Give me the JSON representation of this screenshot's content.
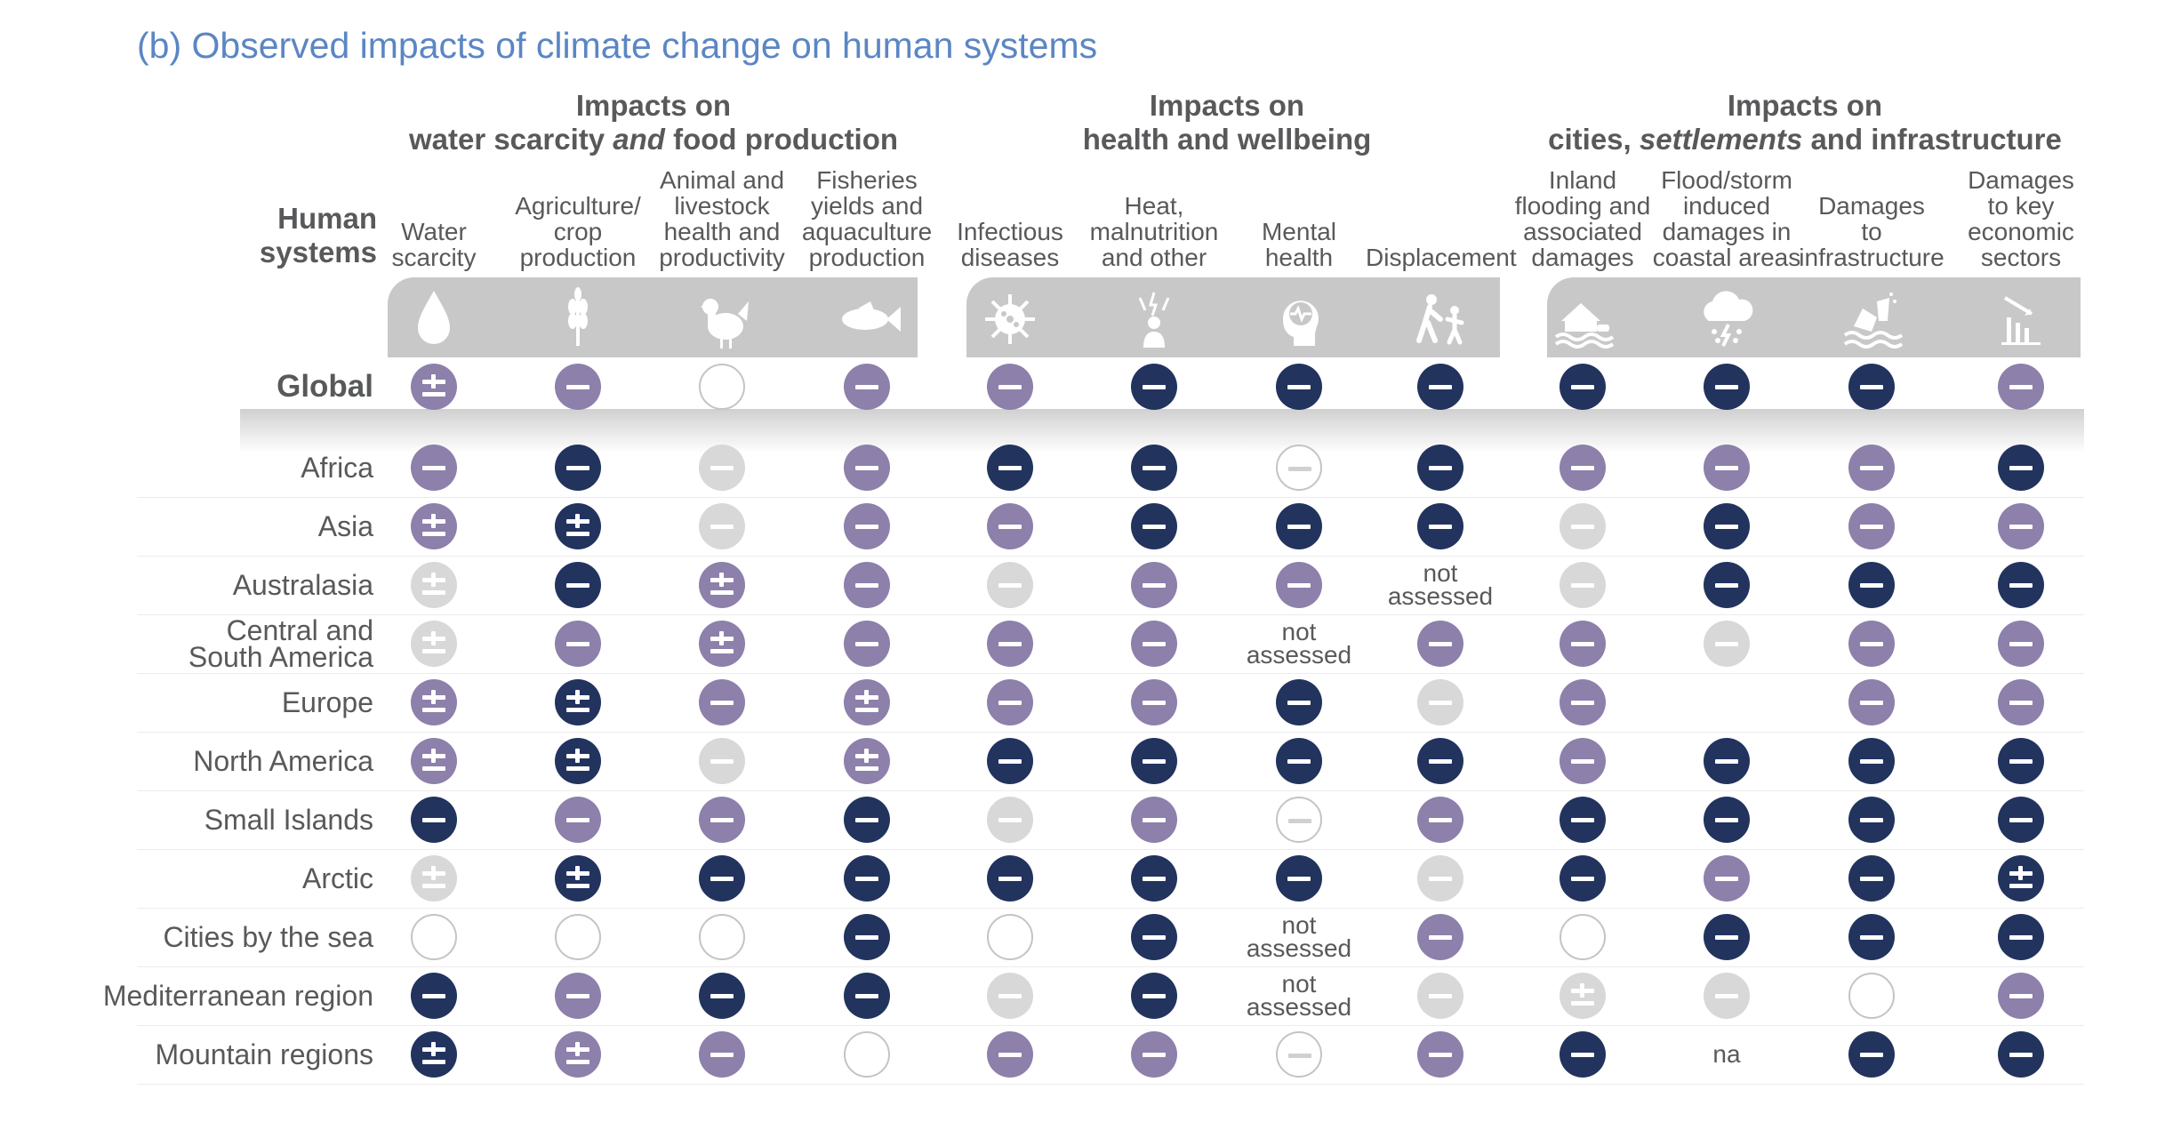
{
  "title": "(b) Observed impacts of climate change on human systems",
  "row_header": [
    "Human",
    "systems"
  ],
  "groups": [
    {
      "line1": "Impacts on",
      "line2_parts": [
        {
          "t": "water scarcity ",
          "i": false
        },
        {
          "t": "and",
          "i": true
        },
        {
          "t": " food production",
          "i": false
        }
      ]
    },
    {
      "line1": "Impacts on",
      "line2_parts": [
        {
          "t": "health and wellbeing",
          "i": false
        }
      ]
    },
    {
      "line1": "Impacts on",
      "line2_parts": [
        {
          "t": "cities, ",
          "i": false
        },
        {
          "t": "settlements",
          "i": true
        },
        {
          "t": " and infrastructure",
          "i": false
        }
      ]
    }
  ],
  "columns": [
    {
      "label": [
        "Water",
        "scarcity"
      ],
      "icon": "water-drop-icon"
    },
    {
      "label": [
        "Agriculture/",
        "crop",
        "production"
      ],
      "icon": "wheat-icon"
    },
    {
      "label": [
        "Animal and",
        "livestock",
        "health and",
        "productivity"
      ],
      "icon": "chicken-icon"
    },
    {
      "label": [
        "Fisheries",
        "yields and",
        "aquaculture",
        "production"
      ],
      "icon": "fish-icon"
    },
    {
      "label": [
        "Infectious",
        "diseases"
      ],
      "icon": "virus-icon"
    },
    {
      "label": [
        "Heat,",
        "malnutrition",
        "and other"
      ],
      "icon": "heat-person-icon"
    },
    {
      "label": [
        "Mental",
        "health"
      ],
      "icon": "head-heartbeat-icon"
    },
    {
      "label": [
        "Displacement"
      ],
      "icon": "displaced-people-icon"
    },
    {
      "label": [
        "Inland",
        "flooding and",
        "associated",
        "damages"
      ],
      "icon": "flooded-house-icon"
    },
    {
      "label": [
        "Flood/storm",
        "induced",
        "damages in",
        "coastal areas"
      ],
      "icon": "storm-cloud-icon"
    },
    {
      "label": [
        "Damages",
        "to",
        "infrastructure"
      ],
      "icon": "damaged-building-icon"
    },
    {
      "label": [
        "Damages",
        "to key",
        "economic",
        "sectors"
      ],
      "icon": "declining-chart-icon"
    }
  ],
  "rows": [
    {
      "label": [
        "Global"
      ],
      "global": true,
      "cells": [
        "pm-mid",
        "neg-mid",
        "none",
        "neg-mid",
        "neg-mid",
        "neg-dark",
        "neg-dark",
        "neg-dark",
        "neg-dark",
        "neg-dark",
        "neg-dark",
        "neg-mid"
      ]
    },
    {
      "label": [
        "Africa"
      ],
      "cells": [
        "neg-mid",
        "neg-dark",
        "neg-light",
        "neg-mid",
        "neg-dark",
        "neg-dark",
        "neg-outline",
        "neg-dark",
        "neg-mid",
        "neg-mid",
        "neg-mid",
        "neg-dark"
      ]
    },
    {
      "label": [
        "Asia"
      ],
      "cells": [
        "pm-mid",
        "pm-dark",
        "neg-light",
        "neg-mid",
        "neg-mid",
        "neg-dark",
        "neg-dark",
        "neg-dark",
        "neg-light",
        "neg-dark",
        "neg-mid",
        "neg-mid"
      ]
    },
    {
      "label": [
        "Australasia"
      ],
      "cells": [
        "pm-light",
        "neg-dark",
        "pm-mid",
        "neg-mid",
        "neg-light",
        "neg-mid",
        "neg-mid",
        "not assessed",
        "neg-light",
        "neg-dark",
        "neg-dark",
        "neg-dark"
      ]
    },
    {
      "label": [
        "Central and",
        "South America"
      ],
      "cells": [
        "pm-light",
        "neg-mid",
        "pm-mid",
        "neg-mid",
        "neg-mid",
        "neg-mid",
        "not assessed",
        "neg-mid",
        "neg-mid",
        "neg-light",
        "neg-mid",
        "neg-mid"
      ]
    },
    {
      "label": [
        "Europe"
      ],
      "cells": [
        "pm-mid",
        "pm-dark",
        "neg-mid",
        "pm-mid",
        "neg-mid",
        "neg-mid",
        "neg-dark",
        "neg-light",
        "neg-mid",
        "na-blank",
        "neg-mid",
        "neg-mid"
      ]
    },
    {
      "label": [
        "North America"
      ],
      "cells": [
        "pm-mid",
        "pm-dark",
        "neg-light",
        "pm-mid",
        "neg-dark",
        "neg-dark",
        "neg-dark",
        "neg-dark",
        "neg-mid",
        "neg-dark",
        "neg-dark",
        "neg-dark"
      ]
    },
    {
      "label": [
        "Small Islands"
      ],
      "cells": [
        "neg-dark",
        "neg-mid",
        "neg-mid",
        "neg-dark",
        "neg-light",
        "neg-mid",
        "neg-outline",
        "neg-mid",
        "neg-dark",
        "neg-dark",
        "neg-dark",
        "neg-dark"
      ]
    },
    {
      "label": [
        "Arctic"
      ],
      "cells": [
        "pm-light",
        "pm-dark",
        "neg-dark",
        "neg-dark",
        "neg-dark",
        "neg-dark",
        "neg-dark",
        "neg-light",
        "neg-dark",
        "neg-mid",
        "neg-dark",
        "pm-dark"
      ]
    },
    {
      "label": [
        "Cities by the sea"
      ],
      "cells": [
        "none",
        "none",
        "none",
        "neg-dark",
        "none",
        "neg-dark",
        "not assessed",
        "neg-mid",
        "none",
        "neg-dark",
        "neg-dark",
        "neg-dark"
      ]
    },
    {
      "label": [
        "Mediterranean region"
      ],
      "cells": [
        "neg-dark",
        "neg-mid",
        "neg-dark",
        "neg-dark",
        "neg-light",
        "neg-dark",
        "not assessed",
        "neg-light",
        "pm-light",
        "neg-light",
        "none",
        "neg-mid"
      ]
    },
    {
      "label": [
        "Mountain regions"
      ],
      "cells": [
        "pm-dark",
        "pm-mid",
        "neg-mid",
        "none",
        "neg-mid",
        "neg-mid",
        "neg-outline",
        "neg-mid",
        "neg-dark",
        "na",
        "neg-dark",
        "neg-dark"
      ]
    }
  ],
  "text_values": {
    "not assessed": [
      "not",
      "assessed"
    ],
    "na": [
      "na"
    ]
  },
  "colors": {
    "high_confidence": "#22335e",
    "medium_confidence": "#8d80ab",
    "low_confidence": "#d8d8d8",
    "icon_band": "#c8c8c8"
  }
}
